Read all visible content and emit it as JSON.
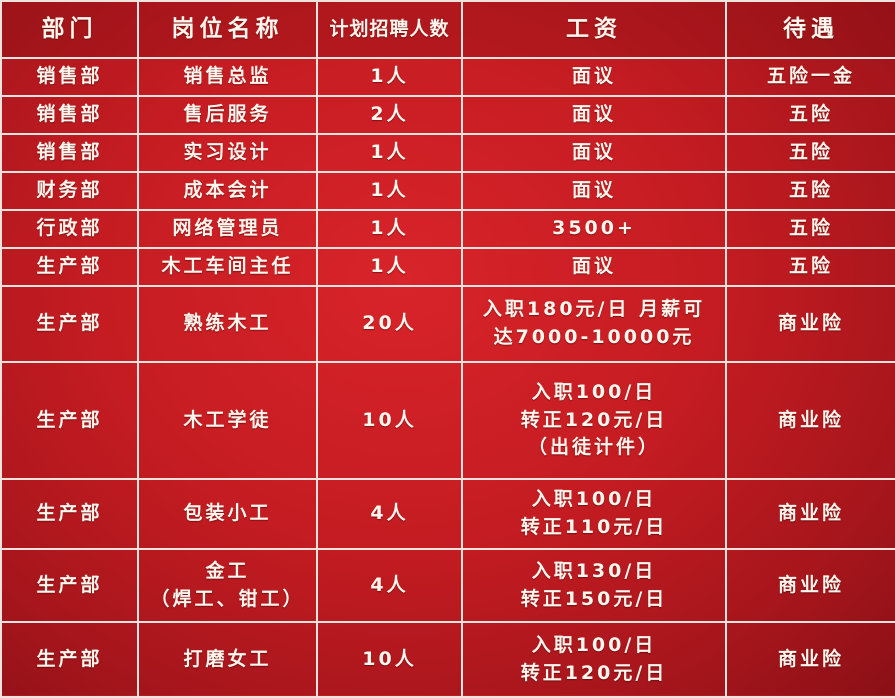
{
  "headers": [
    "部门",
    "岗位名称",
    "计划招聘人数",
    "工资",
    "待遇"
  ],
  "rows": [
    {
      "dept": "销售部",
      "position": [
        "销售总监"
      ],
      "count": "1人",
      "salary": [
        "面议"
      ],
      "benefit": "五险一金"
    },
    {
      "dept": "销售部",
      "position": [
        "售后服务"
      ],
      "count": "2人",
      "salary": [
        "面议"
      ],
      "benefit": "五险"
    },
    {
      "dept": "销售部",
      "position": [
        "实习设计"
      ],
      "count": "1人",
      "salary": [
        "面议"
      ],
      "benefit": "五险"
    },
    {
      "dept": "财务部",
      "position": [
        "成本会计"
      ],
      "count": "1人",
      "salary": [
        "面议"
      ],
      "benefit": "五险"
    },
    {
      "dept": "行政部",
      "position": [
        "网络管理员"
      ],
      "count": "1人",
      "salary": [
        "3500+"
      ],
      "benefit": "五险"
    },
    {
      "dept": "生产部",
      "position": [
        "木工车间主任"
      ],
      "count": "1人",
      "salary": [
        "面议"
      ],
      "benefit": "五险"
    },
    {
      "dept": "生产部",
      "position": [
        "熟练木工"
      ],
      "count": "20人",
      "salary": [
        "入职180元/日 月薪可",
        "达7000-10000元"
      ],
      "benefit": "商业险"
    },
    {
      "dept": "生产部",
      "position": [
        "木工学徒"
      ],
      "count": "10人",
      "salary": [
        "入职100/日",
        "转正120元/日",
        "（出徒计件）"
      ],
      "benefit": "商业险"
    },
    {
      "dept": "生产部",
      "position": [
        "包装小工"
      ],
      "count": "4人",
      "salary": [
        "入职100/日",
        "转正110元/日"
      ],
      "benefit": "商业险"
    },
    {
      "dept": "生产部",
      "position": [
        "金工",
        "（焊工、钳工）"
      ],
      "count": "4人",
      "salary": [
        "入职130/日",
        "转正150元/日"
      ],
      "benefit": "商业险"
    },
    {
      "dept": "生产部",
      "position": [
        "打磨女工"
      ],
      "count": "10人",
      "salary": [
        "入职100/日",
        "转正120元/日"
      ],
      "benefit": "商业险"
    }
  ],
  "colors": {
    "background": "#c41c22",
    "border": "#f3e3df",
    "text": "#fff6ee"
  }
}
